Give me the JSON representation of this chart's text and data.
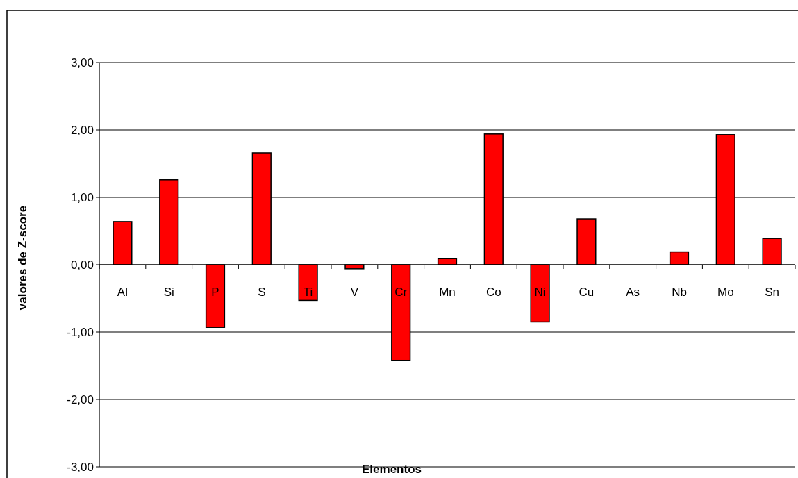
{
  "chart_data": {
    "type": "bar",
    "xlabel": "Elementos",
    "ylabel": "valores de Z-score",
    "categories": [
      "Al",
      "Si",
      "P",
      "S",
      "Ti",
      "V",
      "Cr",
      "Mn",
      "Co",
      "Ni",
      "Cu",
      "As",
      "Nb",
      "Mo",
      "Sn"
    ],
    "values": [
      0.64,
      1.26,
      -0.93,
      1.66,
      -0.53,
      -0.06,
      -1.42,
      0.09,
      1.94,
      -0.85,
      0.68,
      0,
      0.19,
      1.93,
      0.39
    ],
    "color": "#ff0000",
    "ylim": [
      -3,
      3
    ],
    "yticks": [
      {
        "value": -3,
        "label": "-3,00"
      },
      {
        "value": -2,
        "label": "-2,00"
      },
      {
        "value": -1,
        "label": "-1,00"
      },
      {
        "value": 0,
        "label": "0,00"
      },
      {
        "value": 1,
        "label": "1,00"
      },
      {
        "value": 2,
        "label": "2,00"
      },
      {
        "value": 3,
        "label": "3,00"
      }
    ],
    "grid": "y"
  }
}
